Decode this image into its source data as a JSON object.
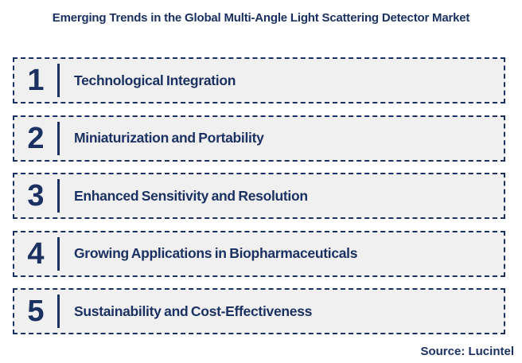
{
  "title": "Emerging Trends in the Global Multi-Angle Light Scattering Detector Market",
  "trends": [
    {
      "number": "1",
      "label": "Technological Integration"
    },
    {
      "number": "2",
      "label": "Miniaturization and Portability"
    },
    {
      "number": "3",
      "label": "Enhanced Sensitivity and Resolution"
    },
    {
      "number": "4",
      "label": "Growing Applications in Biopharmaceuticals"
    },
    {
      "number": "5",
      "label": "Sustainability and Cost-Effectiveness"
    }
  ],
  "source": "Source: Lucintel",
  "colors": {
    "navy": "#1b3161",
    "box_background": "#f0f0f1",
    "page_background": "#ffffff"
  }
}
